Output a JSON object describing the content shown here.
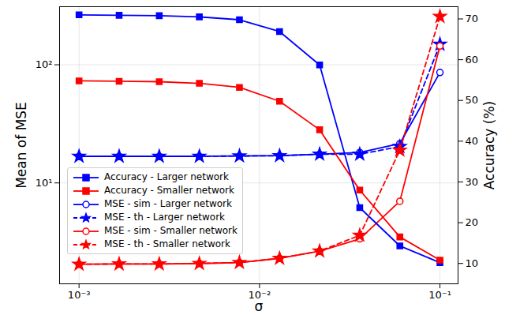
{
  "chart_data": {
    "type": "line",
    "x_label": "σ",
    "y_label": "Mean of MSE",
    "y2_label": "Accuracy (%)",
    "log": true,
    "grid": true,
    "legend": "left",
    "x": [
      0.001,
      0.001668,
      0.002783,
      0.004642,
      0.007743,
      0.01292,
      0.02154,
      0.03594,
      0.05995,
      0.1
    ],
    "xlim": [
      0.00078,
      0.126
    ],
    "xticks": [
      {
        "value": 0.001,
        "label": "10⁻³"
      },
      {
        "value": 0.01,
        "label": "10⁻²"
      },
      {
        "value": 0.1,
        "label": "10⁻¹"
      }
    ],
    "ylim": [
      1.4,
      310
    ],
    "yticks": [
      {
        "value": 10,
        "label": "10¹"
      },
      {
        "value": 100,
        "label": "10²"
      }
    ],
    "y2lim": [
      5,
      73
    ],
    "y2ticks": [
      10,
      20,
      30,
      40,
      50,
      60,
      70
    ],
    "series": [
      {
        "name": "Accuracy - Larger network",
        "color": "#0000ff",
        "axis": "y2",
        "marker": "square",
        "line_style": "solid",
        "values": [
          71.0,
          70.9,
          70.8,
          70.5,
          69.8,
          66.9,
          58.7,
          23.7,
          14.3,
          10.2
        ]
      },
      {
        "name": "Accuracy - Smaller network",
        "color": "#ff0000",
        "axis": "y2",
        "marker": "square",
        "line_style": "solid",
        "values": [
          54.8,
          54.7,
          54.6,
          54.2,
          53.2,
          49.8,
          42.8,
          28.0,
          16.5,
          10.8
        ]
      },
      {
        "name": "MSE - sim - Larger network",
        "color": "#0000ff",
        "marker": "circle_open",
        "line_style": "solid",
        "values": [
          16.8,
          16.8,
          16.8,
          16.8,
          16.9,
          17.0,
          17.5,
          18.1,
          21.5,
          86
        ]
      },
      {
        "name": "MSE - th - Larger network",
        "color": "#0000ff",
        "marker": "star",
        "line_style": "dashed",
        "values": [
          16.8,
          16.8,
          16.8,
          16.8,
          16.9,
          17.0,
          17.5,
          17.5,
          20.3,
          149
        ]
      },
      {
        "name": "MSE - sim - Smaller network",
        "color": "#ff0000",
        "marker": "circle_open",
        "line_style": "solid",
        "values": [
          2.05,
          2.06,
          2.06,
          2.08,
          2.12,
          2.3,
          2.65,
          3.36,
          7.0,
          144
        ]
      },
      {
        "name": "MSE - th - Smaller network",
        "color": "#ff0000",
        "marker": "star",
        "line_style": "dashed",
        "values": [
          2.05,
          2.06,
          2.06,
          2.08,
          2.12,
          2.3,
          2.65,
          3.6,
          18.9,
          256
        ]
      }
    ]
  }
}
